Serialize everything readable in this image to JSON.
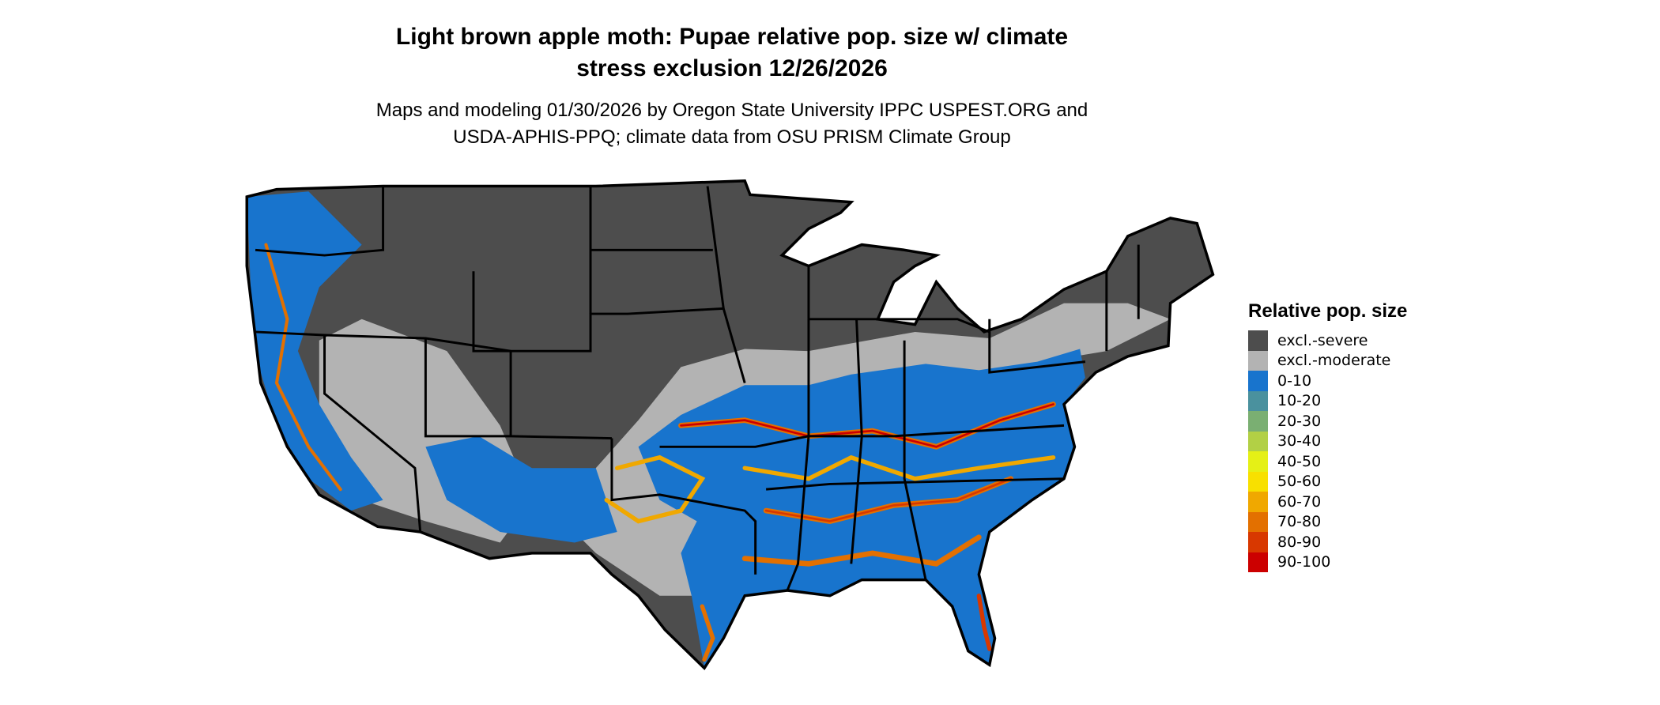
{
  "title": {
    "line1": "Light brown apple moth: Pupae relative pop. size w/ climate",
    "line2": "stress exclusion 12/26/2026"
  },
  "subtitle": {
    "line1": "Maps and modeling 01/30/2026 by Oregon State University IPPC USPEST.ORG and",
    "line2": "USDA-APHIS-PPQ; climate data from OSU PRISM Climate Group"
  },
  "legend": {
    "title": "Relative pop. size",
    "items": [
      {
        "label": "excl.-severe",
        "color": "#4d4d4d"
      },
      {
        "label": "excl.-moderate",
        "color": "#b3b3b3"
      },
      {
        "label": "0-10",
        "color": "#1874cd"
      },
      {
        "label": "10-20",
        "color": "#4a919e"
      },
      {
        "label": "20-30",
        "color": "#7aaf72"
      },
      {
        "label": "30-40",
        "color": "#b2d045"
      },
      {
        "label": "40-50",
        "color": "#e5f016"
      },
      {
        "label": "50-60",
        "color": "#f8e000"
      },
      {
        "label": "60-70",
        "color": "#f0a800"
      },
      {
        "label": "70-80",
        "color": "#e37000"
      },
      {
        "label": "80-90",
        "color": "#d83800"
      },
      {
        "label": "90-100",
        "color": "#cc0000"
      }
    ]
  }
}
